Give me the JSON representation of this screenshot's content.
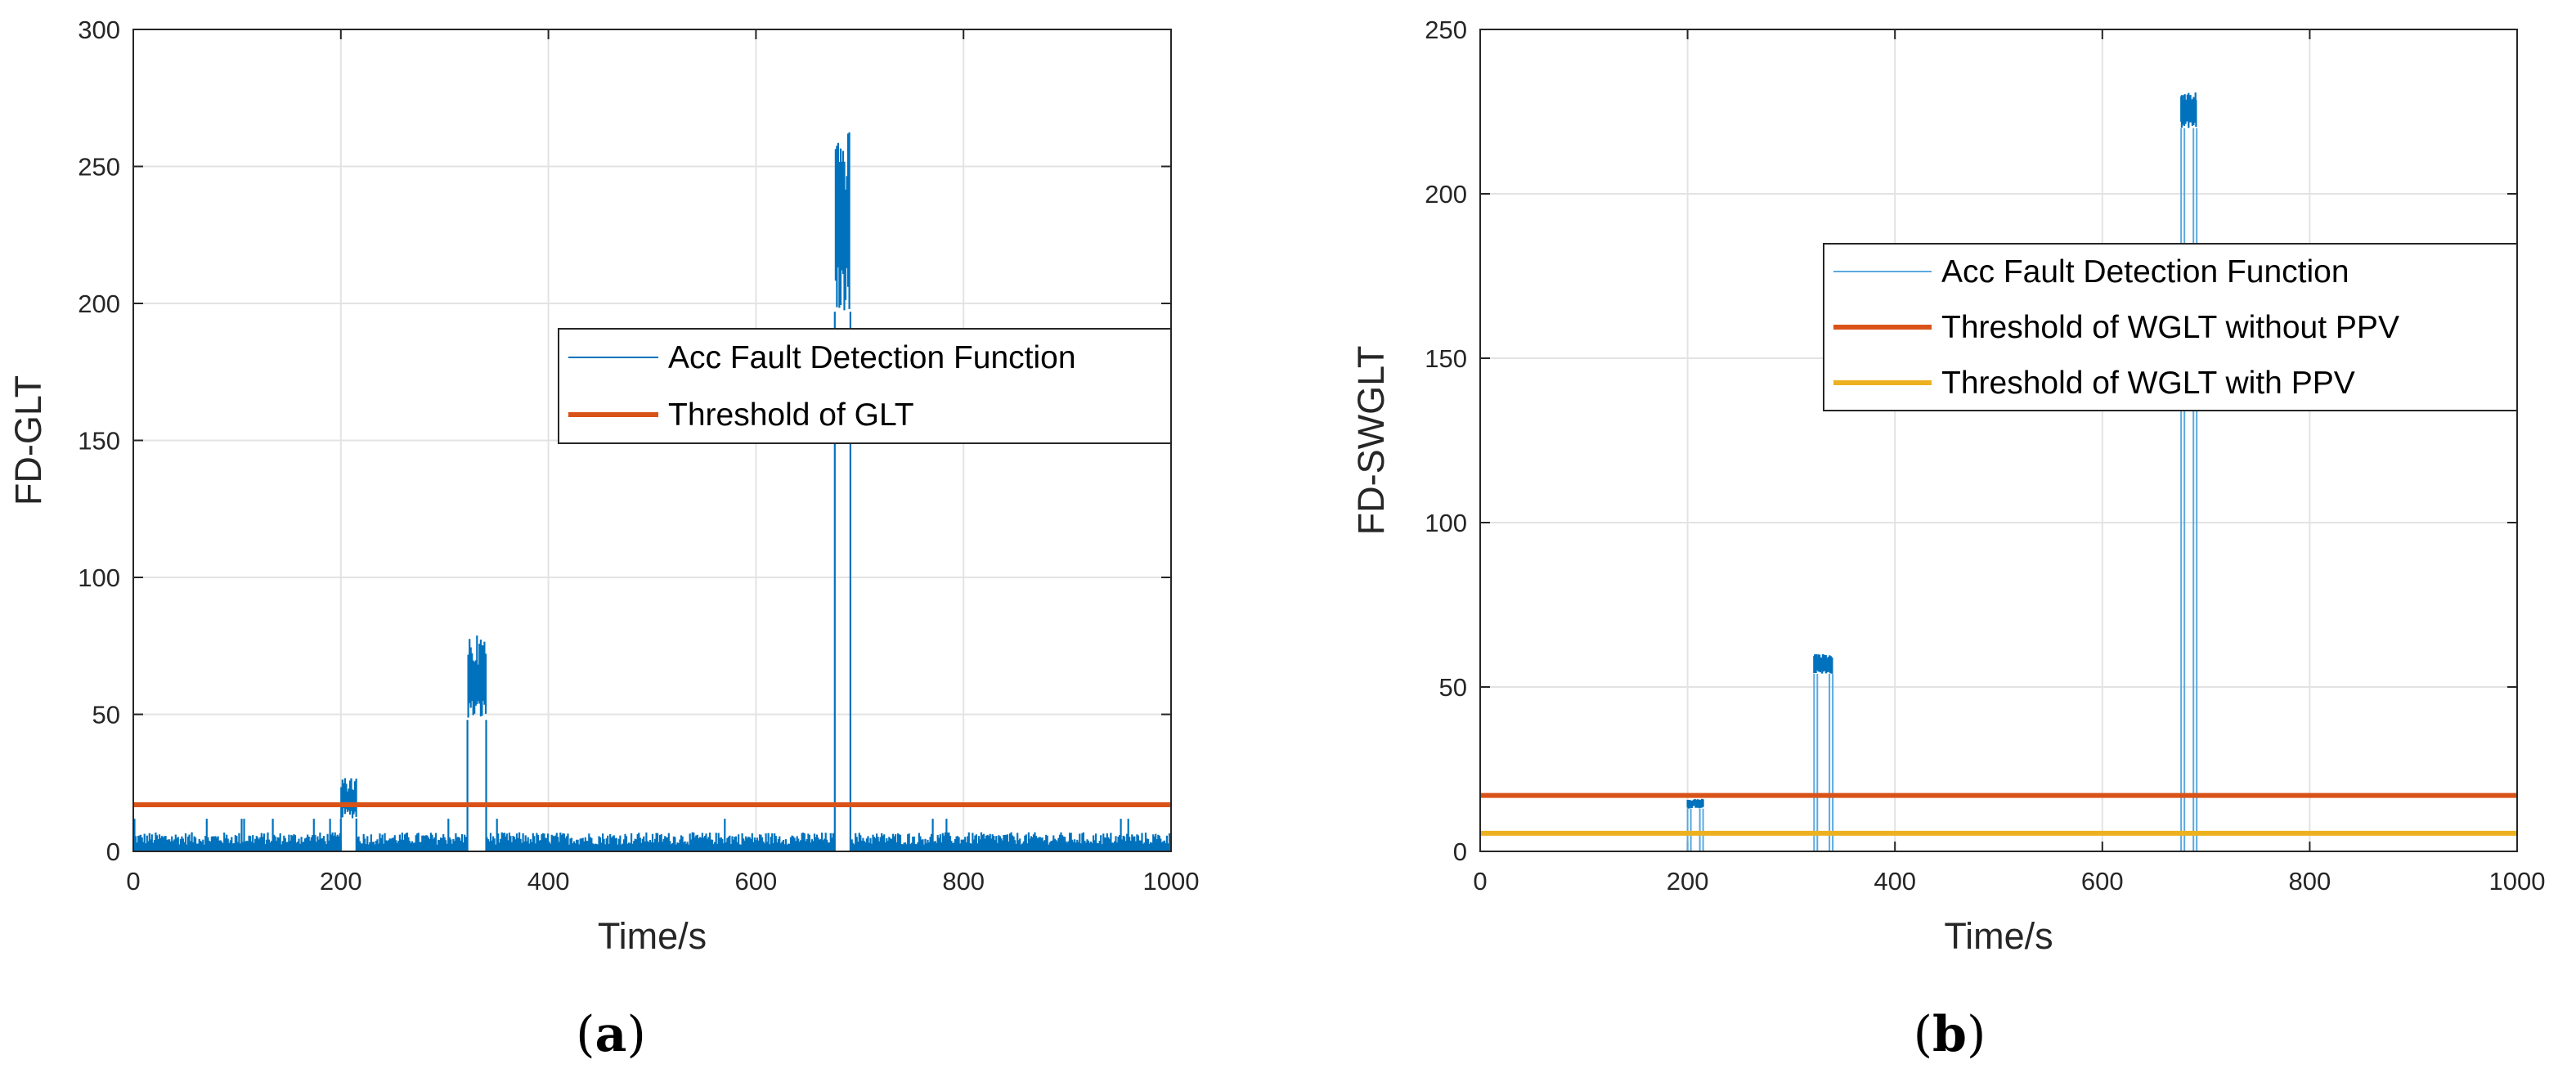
{
  "colors": {
    "signal": "#0072BD",
    "signal_light": "#5BA9E0",
    "threshold_red": "#D95319",
    "threshold_yellow": "#EDB120",
    "axis": "#262626",
    "grid": "#e3e3e3"
  },
  "chart_data": [
    {
      "type": "line",
      "caption": "a",
      "title": "",
      "xlabel": "Time/s",
      "ylabel": "FD-GLT",
      "xlim": [
        0,
        1000
      ],
      "ylim": [
        0,
        300
      ],
      "xticks": [
        "0",
        "200",
        "400",
        "600",
        "800",
        "1000"
      ],
      "yticks": [
        "0",
        "50",
        "100",
        "150",
        "200",
        "250",
        "300"
      ],
      "grid": true,
      "legend_position": "right-middle",
      "series": [
        {
          "name": "Acc Fault Detection Function",
          "style": "noisy-band",
          "baseline_max": 7,
          "fault_segments": [
            {
              "x": [
                200,
                215
              ],
              "y": [
                12,
                27
              ]
            },
            {
              "x": [
                322,
                340
              ],
              "y": [
                48,
                79
              ]
            },
            {
              "x": [
                676,
                691
              ],
              "y": [
                197,
                264
              ]
            }
          ]
        },
        {
          "name": "Threshold of GLT",
          "style": "hline",
          "value": 17
        }
      ]
    },
    {
      "type": "line",
      "caption": "b",
      "title": "",
      "xlabel": "Time/s",
      "ylabel": "FD-SWGLT",
      "xlim": [
        0,
        1000
      ],
      "ylim": [
        0,
        250
      ],
      "xticks": [
        "0",
        "200",
        "400",
        "600",
        "800",
        "1000"
      ],
      "yticks": [
        "0",
        "50",
        "100",
        "150",
        "200",
        "250"
      ],
      "grid": true,
      "legend_position": "right-upper",
      "series": [
        {
          "name": "Acc Fault Detection Function",
          "style": "steps",
          "baseline": 0,
          "fault_segments": [
            {
              "x": [
                200,
                215
              ],
              "y": [
                13,
                16
              ]
            },
            {
              "x": [
                322,
                340
              ],
              "y": [
                54,
                60
              ]
            },
            {
              "x": [
                676,
                691
              ],
              "y": [
                220,
                231
              ]
            }
          ]
        },
        {
          "name": "Threshold of WGLT without PPV",
          "style": "hline",
          "value": 17
        },
        {
          "name": "Threshold of WGLT with PPV",
          "style": "hline",
          "value": 5.5
        }
      ]
    }
  ]
}
